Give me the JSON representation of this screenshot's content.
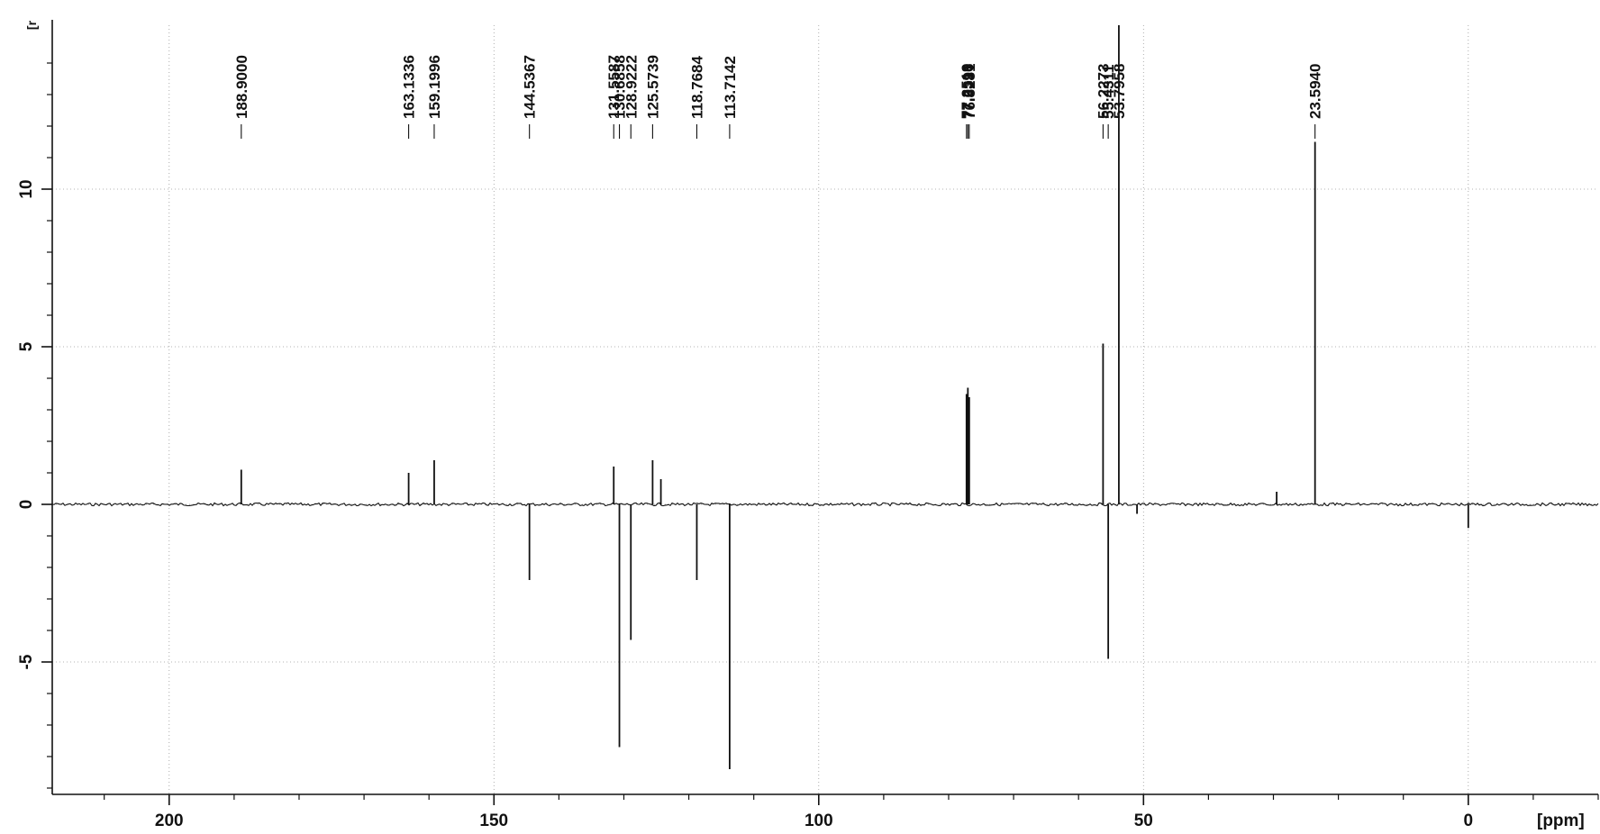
{
  "chart_data": {
    "type": "line",
    "title": "",
    "xlabel": "[ppm]",
    "ylabel": "[r",
    "x_reversed": true,
    "xlim": [
      218,
      -20
    ],
    "ylim": [
      -9.2,
      15.2
    ],
    "grid": true,
    "x_ticks": [
      {
        "value": 200,
        "label": "200"
      },
      {
        "value": 150,
        "label": "150"
      },
      {
        "value": 100,
        "label": "100"
      },
      {
        "value": 50,
        "label": "50"
      },
      {
        "value": 0,
        "label": "0"
      }
    ],
    "y_ticks": [
      {
        "value": 10,
        "label": "10"
      },
      {
        "value": 5,
        "label": "5"
      },
      {
        "value": 0,
        "label": "0"
      },
      {
        "value": -5,
        "label": "-5"
      }
    ],
    "peak_labels": [
      {
        "text": "188.9000",
        "ppm": 188.9
      },
      {
        "text": "163.1336",
        "ppm": 163.1336
      },
      {
        "text": "159.1996",
        "ppm": 159.1996
      },
      {
        "text": "144.5367",
        "ppm": 144.5367
      },
      {
        "text": "131.5587",
        "ppm": 131.5587
      },
      {
        "text": "130.6858",
        "ppm": 130.6858
      },
      {
        "text": "128.9222",
        "ppm": 128.9222
      },
      {
        "text": "125.5739",
        "ppm": 125.5739
      },
      {
        "text": "118.7684",
        "ppm": 118.7684
      },
      {
        "text": "113.7142",
        "ppm": 113.7142
      },
      {
        "text": "77.2519",
        "ppm": 77.2519
      },
      {
        "text": "77.0396",
        "ppm": 77.0396
      },
      {
        "text": "76.8281",
        "ppm": 76.8281
      },
      {
        "text": "56.2273",
        "ppm": 56.2273
      },
      {
        "text": "55.4311",
        "ppm": 55.4311
      },
      {
        "text": "53.7958",
        "ppm": 53.7958
      },
      {
        "text": "23.5940",
        "ppm": 23.594
      }
    ],
    "peaks": [
      {
        "ppm": 188.9,
        "intensity": 1.1
      },
      {
        "ppm": 163.1336,
        "intensity": 1.0
      },
      {
        "ppm": 159.1996,
        "intensity": 1.4
      },
      {
        "ppm": 144.5367,
        "intensity": -2.4
      },
      {
        "ppm": 131.5587,
        "intensity": 1.2
      },
      {
        "ppm": 130.6858,
        "intensity": -7.7
      },
      {
        "ppm": 128.9222,
        "intensity": -4.3
      },
      {
        "ppm": 125.5739,
        "intensity": 1.4
      },
      {
        "ppm": 124.3,
        "intensity": 0.8
      },
      {
        "ppm": 118.7684,
        "intensity": -2.4
      },
      {
        "ppm": 113.7142,
        "intensity": -8.4
      },
      {
        "ppm": 77.2519,
        "intensity": 3.5
      },
      {
        "ppm": 77.0396,
        "intensity": 3.7
      },
      {
        "ppm": 76.8281,
        "intensity": 3.4
      },
      {
        "ppm": 56.2273,
        "intensity": 5.1
      },
      {
        "ppm": 55.4311,
        "intensity": -4.9
      },
      {
        "ppm": 53.7958,
        "intensity": 15.2
      },
      {
        "ppm": 51.0,
        "intensity": -0.3
      },
      {
        "ppm": 29.5,
        "intensity": 0.4
      },
      {
        "ppm": 23.594,
        "intensity": 11.5
      },
      {
        "ppm": 0.0,
        "intensity": -0.75
      }
    ]
  }
}
